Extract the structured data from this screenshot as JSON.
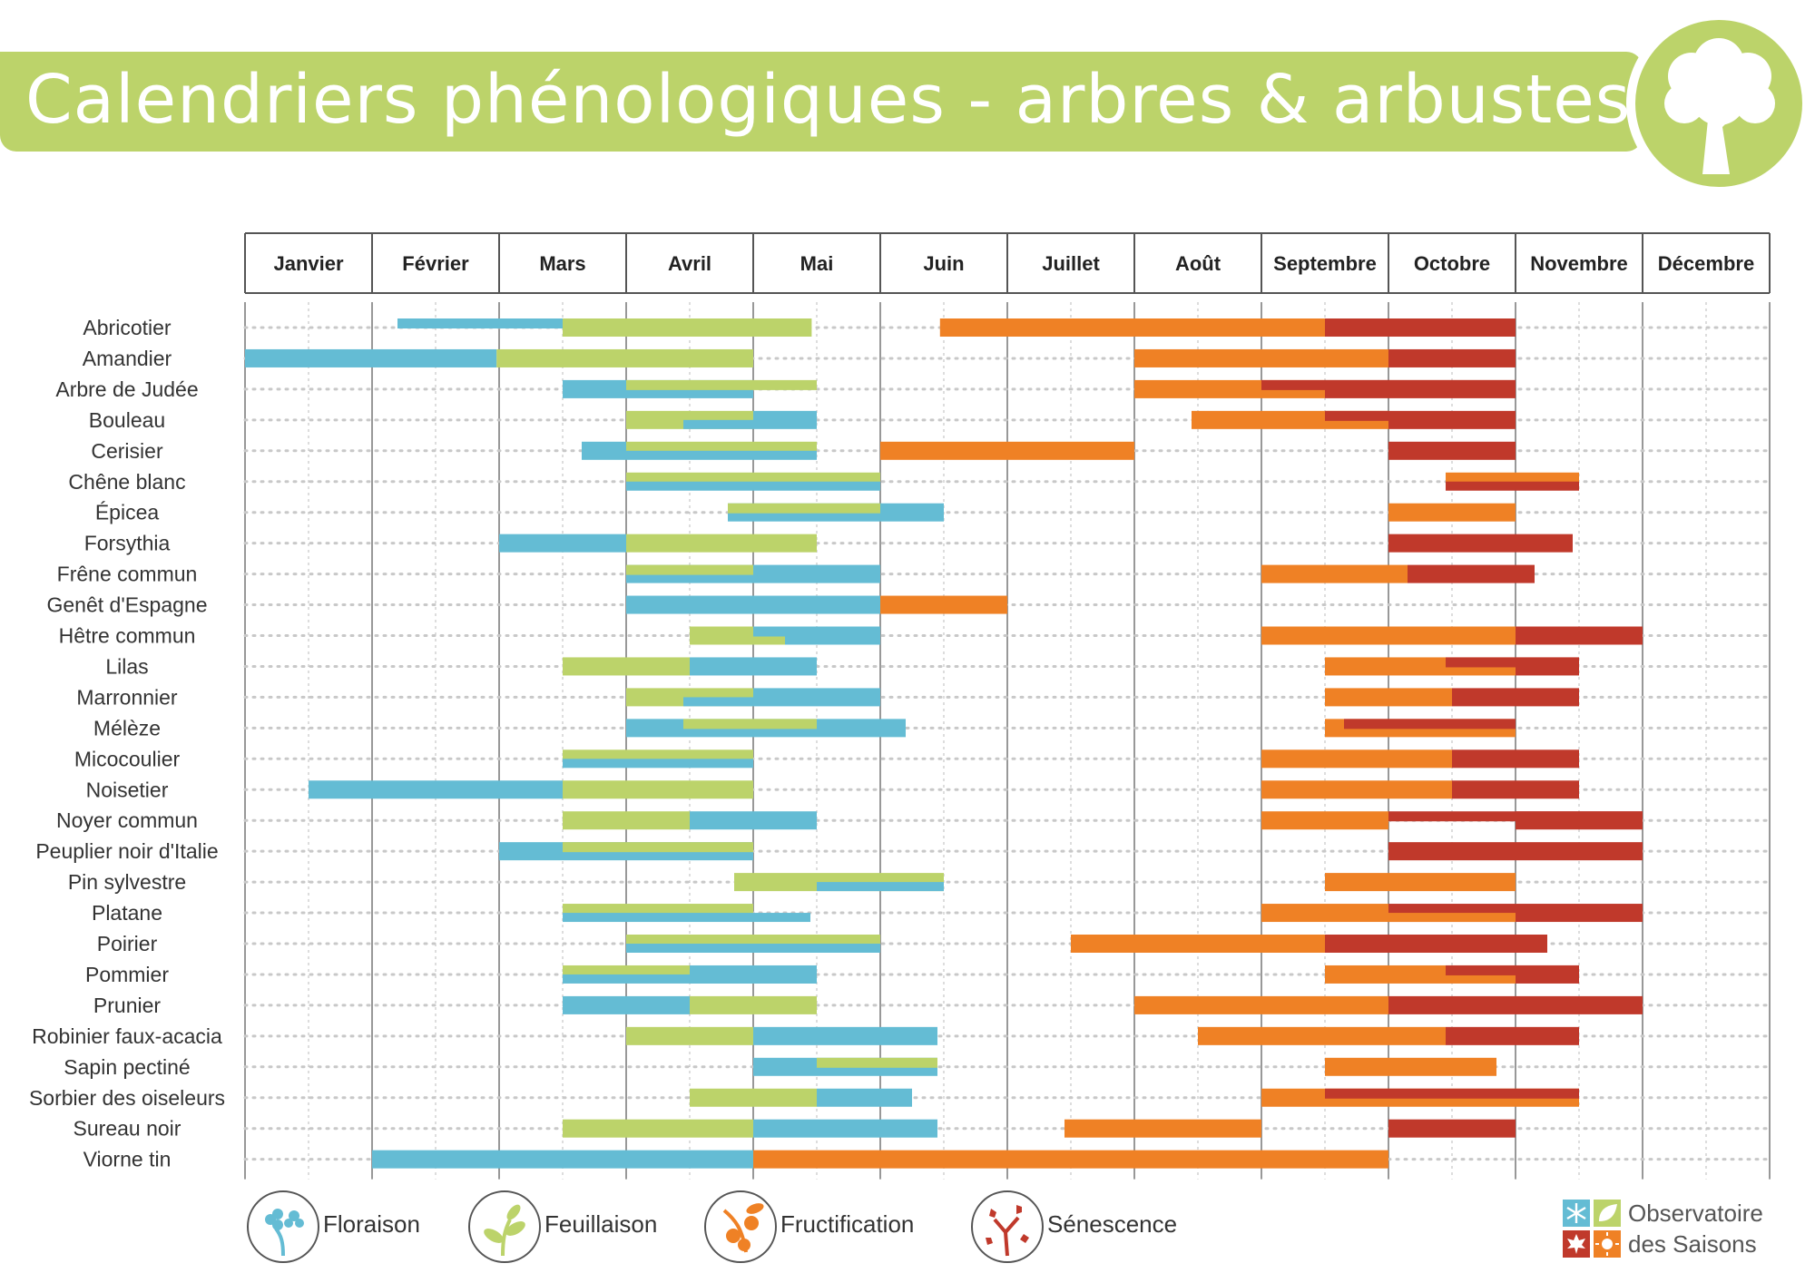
{
  "header": {
    "title": "Calendriers phénologiques - arbres & arbustes"
  },
  "logo": {
    "icon": "tree-icon",
    "color": "#bcd36a"
  },
  "legend": [
    {
      "key": "floraison",
      "label": "Floraison",
      "color": "#64bcd4",
      "icon": "flower-icon"
    },
    {
      "key": "feuillaison",
      "label": "Feuillaison",
      "color": "#bcd36a",
      "icon": "sprout-icon"
    },
    {
      "key": "fructification",
      "label": "Fructification",
      "color": "#ef8125",
      "icon": "fruit-icon"
    },
    {
      "key": "senescence",
      "label": "Sénescence",
      "color": "#c0392b",
      "icon": "falling-leaves-icon"
    }
  ],
  "footer_logo": {
    "line1": "Observatoire",
    "line2": "des Saisons",
    "icons": [
      "snowflake-icon",
      "leaf-icon",
      "maple-leaf-icon",
      "sun-icon"
    ],
    "colors": [
      "#64bcd4",
      "#bcd36a",
      "#c0392b",
      "#ef8125"
    ]
  },
  "chart_data": {
    "type": "gantt",
    "x_unit": "month (1 = start of Janvier, 13 = end of Décembre)",
    "months": [
      "Janvier",
      "Février",
      "Mars",
      "Avril",
      "Mai",
      "Juin",
      "Juillet",
      "Août",
      "Septembre",
      "Octobre",
      "Novembre",
      "Décembre"
    ],
    "xlim": [
      1,
      13
    ],
    "grid": "half-month dotted",
    "rows": [
      {
        "name": "Abricotier",
        "bars": [
          {
            "phase": "floraison",
            "start": 2.2,
            "end": 3.5,
            "slot": "top"
          },
          {
            "phase": "floraison",
            "start": 3.5,
            "end": 4.4,
            "slot": "bottom"
          },
          {
            "phase": "feuillaison",
            "start": 3.5,
            "end": 5.46,
            "slot": "full"
          },
          {
            "phase": "fructification",
            "start": 6.47,
            "end": 9.5,
            "slot": "full"
          },
          {
            "phase": "senescence",
            "start": 9.5,
            "end": 11.0,
            "slot": "full"
          }
        ]
      },
      {
        "name": "Amandier",
        "bars": [
          {
            "phase": "floraison",
            "start": 1.0,
            "end": 2.98,
            "slot": "full"
          },
          {
            "phase": "feuillaison",
            "start": 2.98,
            "end": 5.0,
            "slot": "full"
          },
          {
            "phase": "fructification",
            "start": 8.0,
            "end": 10.0,
            "slot": "full"
          },
          {
            "phase": "senescence",
            "start": 10.0,
            "end": 11.0,
            "slot": "full"
          }
        ]
      },
      {
        "name": "Arbre de Judée",
        "bars": [
          {
            "phase": "floraison",
            "start": 3.5,
            "end": 5.0,
            "slot": "full"
          },
          {
            "phase": "feuillaison",
            "start": 4.0,
            "end": 5.5,
            "slot": "top"
          },
          {
            "phase": "fructification",
            "start": 8.0,
            "end": 9.5,
            "slot": "full"
          },
          {
            "phase": "senescence",
            "start": 9.0,
            "end": 11.0,
            "slot": "top"
          },
          {
            "phase": "senescence",
            "start": 9.5,
            "end": 11.0,
            "slot": "full"
          }
        ]
      },
      {
        "name": "Bouleau",
        "bars": [
          {
            "phase": "feuillaison",
            "start": 4.0,
            "end": 5.0,
            "slot": "full"
          },
          {
            "phase": "floraison",
            "start": 5.0,
            "end": 5.5,
            "slot": "full"
          },
          {
            "phase": "floraison",
            "start": 4.45,
            "end": 5.0,
            "slot": "bottom"
          },
          {
            "phase": "fructification",
            "start": 8.45,
            "end": 10.0,
            "slot": "full"
          },
          {
            "phase": "senescence",
            "start": 9.5,
            "end": 10.0,
            "slot": "top"
          },
          {
            "phase": "senescence",
            "start": 10.0,
            "end": 11.0,
            "slot": "full"
          }
        ]
      },
      {
        "name": "Cerisier",
        "bars": [
          {
            "phase": "floraison",
            "start": 3.65,
            "end": 4.0,
            "slot": "full"
          },
          {
            "phase": "feuillaison",
            "start": 4.0,
            "end": 5.5,
            "slot": "top"
          },
          {
            "phase": "floraison",
            "start": 4.0,
            "end": 5.5,
            "slot": "bottom"
          },
          {
            "phase": "fructification",
            "start": 6.0,
            "end": 8.0,
            "slot": "full"
          },
          {
            "phase": "senescence",
            "start": 10.0,
            "end": 11.0,
            "slot": "full"
          }
        ]
      },
      {
        "name": "Chêne blanc",
        "bars": [
          {
            "phase": "feuillaison",
            "start": 4.0,
            "end": 6.0,
            "slot": "top"
          },
          {
            "phase": "floraison",
            "start": 4.0,
            "end": 6.0,
            "slot": "bottom"
          },
          {
            "phase": "fructification",
            "start": 10.45,
            "end": 11.5,
            "slot": "top"
          },
          {
            "phase": "senescence",
            "start": 10.45,
            "end": 11.5,
            "slot": "bottom"
          }
        ]
      },
      {
        "name": "Épicea",
        "bars": [
          {
            "phase": "floraison",
            "start": 4.8,
            "end": 6.5,
            "slot": "full"
          },
          {
            "phase": "feuillaison",
            "start": 4.8,
            "end": 6.0,
            "slot": "top"
          },
          {
            "phase": "fructification",
            "start": 10.0,
            "end": 11.0,
            "slot": "full"
          }
        ]
      },
      {
        "name": "Forsythia",
        "bars": [
          {
            "phase": "floraison",
            "start": 3.0,
            "end": 4.0,
            "slot": "full"
          },
          {
            "phase": "feuillaison",
            "start": 4.0,
            "end": 5.5,
            "slot": "full"
          },
          {
            "phase": "senescence",
            "start": 10.0,
            "end": 11.45,
            "slot": "full"
          }
        ]
      },
      {
        "name": "Frêne commun",
        "bars": [
          {
            "phase": "floraison",
            "start": 4.0,
            "end": 6.0,
            "slot": "full"
          },
          {
            "phase": "feuillaison",
            "start": 4.0,
            "end": 5.0,
            "slot": "top"
          },
          {
            "phase": "fructification",
            "start": 9.0,
            "end": 10.15,
            "slot": "full"
          },
          {
            "phase": "senescence",
            "start": 10.15,
            "end": 11.15,
            "slot": "full"
          }
        ]
      },
      {
        "name": "Genêt d'Espagne",
        "bars": [
          {
            "phase": "floraison",
            "start": 4.0,
            "end": 6.0,
            "slot": "full"
          },
          {
            "phase": "fructification",
            "start": 6.0,
            "end": 7.0,
            "slot": "full"
          }
        ]
      },
      {
        "name": "Hêtre commun",
        "bars": [
          {
            "phase": "feuillaison",
            "start": 4.5,
            "end": 5.25,
            "slot": "full"
          },
          {
            "phase": "floraison",
            "start": 5.25,
            "end": 6.0,
            "slot": "full"
          },
          {
            "phase": "floraison",
            "start": 5.0,
            "end": 6.0,
            "slot": "top"
          },
          {
            "phase": "fructification",
            "start": 9.0,
            "end": 11.0,
            "slot": "full"
          },
          {
            "phase": "senescence",
            "start": 11.0,
            "end": 12.0,
            "slot": "full"
          }
        ]
      },
      {
        "name": "Lilas",
        "bars": [
          {
            "phase": "feuillaison",
            "start": 3.5,
            "end": 4.5,
            "slot": "full"
          },
          {
            "phase": "floraison",
            "start": 4.5,
            "end": 5.5,
            "slot": "full"
          },
          {
            "phase": "fructification",
            "start": 9.5,
            "end": 11.0,
            "slot": "full"
          },
          {
            "phase": "senescence",
            "start": 10.45,
            "end": 11.5,
            "slot": "top"
          },
          {
            "phase": "senescence",
            "start": 11.0,
            "end": 11.5,
            "slot": "full"
          }
        ]
      },
      {
        "name": "Marronnier",
        "bars": [
          {
            "phase": "feuillaison",
            "start": 4.0,
            "end": 5.0,
            "slot": "full"
          },
          {
            "phase": "floraison",
            "start": 5.0,
            "end": 6.0,
            "slot": "full"
          },
          {
            "phase": "floraison",
            "start": 4.45,
            "end": 5.0,
            "slot": "bottom"
          },
          {
            "phase": "fructification",
            "start": 9.5,
            "end": 10.5,
            "slot": "full"
          },
          {
            "phase": "senescence",
            "start": 10.5,
            "end": 11.5,
            "slot": "full"
          }
        ]
      },
      {
        "name": "Mélèze",
        "bars": [
          {
            "phase": "floraison",
            "start": 4.0,
            "end": 6.2,
            "slot": "full"
          },
          {
            "phase": "feuillaison",
            "start": 4.45,
            "end": 5.5,
            "slot": "top"
          },
          {
            "phase": "fructification",
            "start": 9.5,
            "end": 11.0,
            "slot": "full"
          },
          {
            "phase": "senescence",
            "start": 9.65,
            "end": 11.0,
            "slot": "top"
          }
        ]
      },
      {
        "name": "Micocoulier",
        "bars": [
          {
            "phase": "feuillaison",
            "start": 3.5,
            "end": 5.0,
            "slot": "top"
          },
          {
            "phase": "floraison",
            "start": 3.5,
            "end": 5.0,
            "slot": "bottom"
          },
          {
            "phase": "fructification",
            "start": 9.0,
            "end": 10.5,
            "slot": "full"
          },
          {
            "phase": "senescence",
            "start": 10.5,
            "end": 11.5,
            "slot": "full"
          }
        ]
      },
      {
        "name": "Noisetier",
        "bars": [
          {
            "phase": "floraison",
            "start": 1.5,
            "end": 3.5,
            "slot": "full"
          },
          {
            "phase": "feuillaison",
            "start": 3.5,
            "end": 5.0,
            "slot": "full"
          },
          {
            "phase": "fructification",
            "start": 9.0,
            "end": 10.5,
            "slot": "full"
          },
          {
            "phase": "senescence",
            "start": 10.5,
            "end": 11.5,
            "slot": "full"
          }
        ]
      },
      {
        "name": "Noyer commun",
        "bars": [
          {
            "phase": "feuillaison",
            "start": 3.5,
            "end": 4.5,
            "slot": "full"
          },
          {
            "phase": "floraison",
            "start": 4.5,
            "end": 5.5,
            "slot": "full"
          },
          {
            "phase": "fructification",
            "start": 9.0,
            "end": 10.0,
            "slot": "full"
          },
          {
            "phase": "senescence",
            "start": 10.0,
            "end": 12.0,
            "slot": "top"
          },
          {
            "phase": "senescence",
            "start": 11.0,
            "end": 12.0,
            "slot": "full"
          }
        ]
      },
      {
        "name": "Peuplier noir d'Italie",
        "bars": [
          {
            "phase": "floraison",
            "start": 3.0,
            "end": 5.0,
            "slot": "full"
          },
          {
            "phase": "feuillaison",
            "start": 3.5,
            "end": 5.0,
            "slot": "top"
          },
          {
            "phase": "senescence",
            "start": 10.0,
            "end": 12.0,
            "slot": "full"
          }
        ]
      },
      {
        "name": "Pin sylvestre",
        "bars": [
          {
            "phase": "feuillaison",
            "start": 4.85,
            "end": 6.5,
            "slot": "full"
          },
          {
            "phase": "floraison",
            "start": 5.5,
            "end": 6.5,
            "slot": "bottom"
          },
          {
            "phase": "fructification",
            "start": 9.5,
            "end": 11.0,
            "slot": "full"
          }
        ]
      },
      {
        "name": "Platane",
        "bars": [
          {
            "phase": "feuillaison",
            "start": 3.5,
            "end": 5.0,
            "slot": "top"
          },
          {
            "phase": "floraison",
            "start": 3.5,
            "end": 5.45,
            "slot": "bottom"
          },
          {
            "phase": "fructification",
            "start": 9.0,
            "end": 10.0,
            "slot": "full"
          },
          {
            "phase": "senescence",
            "start": 10.0,
            "end": 12.0,
            "slot": "full"
          },
          {
            "phase": "fructification",
            "start": 10.0,
            "end": 11.0,
            "slot": "bottom"
          }
        ]
      },
      {
        "name": "Poirier",
        "bars": [
          {
            "phase": "feuillaison",
            "start": 4.0,
            "end": 6.0,
            "slot": "top"
          },
          {
            "phase": "floraison",
            "start": 4.0,
            "end": 6.0,
            "slot": "bottom"
          },
          {
            "phase": "fructification",
            "start": 7.5,
            "end": 9.5,
            "slot": "full"
          },
          {
            "phase": "senescence",
            "start": 9.5,
            "end": 11.25,
            "slot": "full"
          }
        ]
      },
      {
        "name": "Pommier",
        "bars": [
          {
            "phase": "feuillaison",
            "start": 3.5,
            "end": 4.5,
            "slot": "top"
          },
          {
            "phase": "floraison",
            "start": 3.5,
            "end": 5.5,
            "slot": "bottom"
          },
          {
            "phase": "floraison",
            "start": 4.5,
            "end": 5.5,
            "slot": "full"
          },
          {
            "phase": "fructification",
            "start": 9.5,
            "end": 11.0,
            "slot": "full"
          },
          {
            "phase": "senescence",
            "start": 10.45,
            "end": 11.5,
            "slot": "top"
          },
          {
            "phase": "senescence",
            "start": 11.0,
            "end": 11.5,
            "slot": "full"
          }
        ]
      },
      {
        "name": "Prunier",
        "bars": [
          {
            "phase": "floraison",
            "start": 3.5,
            "end": 4.5,
            "slot": "full"
          },
          {
            "phase": "feuillaison",
            "start": 4.5,
            "end": 5.5,
            "slot": "full"
          },
          {
            "phase": "fructification",
            "start": 8.0,
            "end": 10.0,
            "slot": "full"
          },
          {
            "phase": "senescence",
            "start": 10.0,
            "end": 12.0,
            "slot": "full"
          }
        ]
      },
      {
        "name": "Robinier faux-acacia",
        "bars": [
          {
            "phase": "feuillaison",
            "start": 4.0,
            "end": 5.0,
            "slot": "full"
          },
          {
            "phase": "floraison",
            "start": 5.0,
            "end": 6.45,
            "slot": "full"
          },
          {
            "phase": "fructification",
            "start": 8.5,
            "end": 10.45,
            "slot": "full"
          },
          {
            "phase": "senescence",
            "start": 10.45,
            "end": 11.5,
            "slot": "full"
          }
        ]
      },
      {
        "name": "Sapin pectiné",
        "bars": [
          {
            "phase": "floraison",
            "start": 5.0,
            "end": 6.45,
            "slot": "full"
          },
          {
            "phase": "feuillaison",
            "start": 5.5,
            "end": 6.45,
            "slot": "top"
          },
          {
            "phase": "fructification",
            "start": 9.5,
            "end": 10.85,
            "slot": "full"
          }
        ]
      },
      {
        "name": "Sorbier des oiseleurs",
        "bars": [
          {
            "phase": "feuillaison",
            "start": 4.5,
            "end": 5.5,
            "slot": "full"
          },
          {
            "phase": "floraison",
            "start": 5.5,
            "end": 6.25,
            "slot": "full"
          },
          {
            "phase": "fructification",
            "start": 9.0,
            "end": 11.5,
            "slot": "full"
          },
          {
            "phase": "senescence",
            "start": 9.5,
            "end": 11.5,
            "slot": "top"
          }
        ]
      },
      {
        "name": "Sureau noir",
        "bars": [
          {
            "phase": "feuillaison",
            "start": 3.5,
            "end": 5.0,
            "slot": "full"
          },
          {
            "phase": "floraison",
            "start": 5.0,
            "end": 6.45,
            "slot": "full"
          },
          {
            "phase": "fructification",
            "start": 7.45,
            "end": 9.0,
            "slot": "full"
          },
          {
            "phase": "senescence",
            "start": 10.0,
            "end": 11.0,
            "slot": "full"
          }
        ]
      },
      {
        "name": "Viorne tin",
        "bars": [
          {
            "phase": "floraison",
            "start": 2.0,
            "end": 5.0,
            "slot": "full"
          },
          {
            "phase": "fructification",
            "start": 5.0,
            "end": 10.0,
            "slot": "full"
          }
        ]
      }
    ]
  }
}
